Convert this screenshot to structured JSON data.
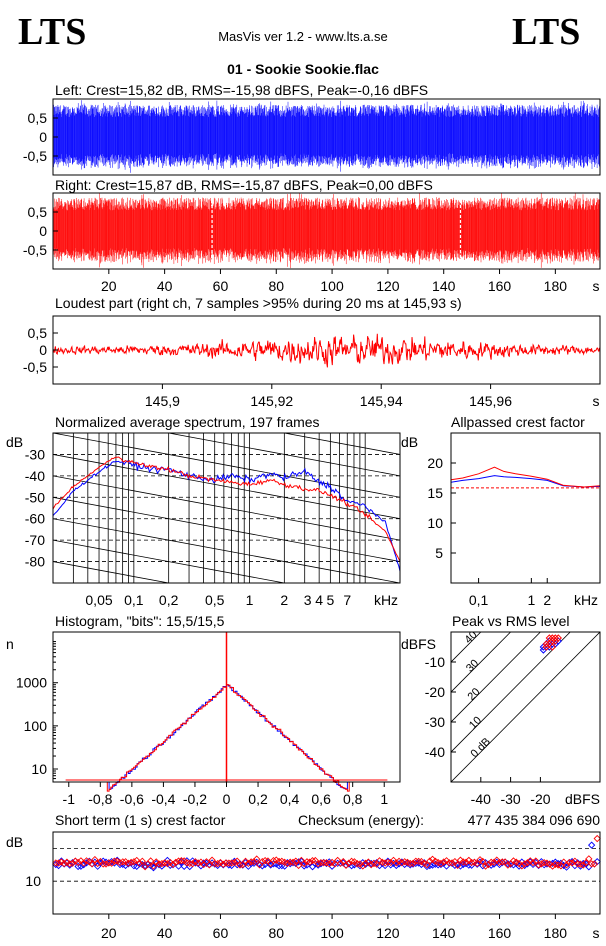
{
  "header": {
    "logo_left": "LTS",
    "logo_right": "LTS",
    "app_title": "MasVis ver 1.2 - www.lts.a.se",
    "file_title": "01 - Sookie Sookie.flac"
  },
  "colors": {
    "left": "#0000ff",
    "right": "#ff0000",
    "axis": "#000000"
  },
  "chart_data": [
    {
      "type": "line",
      "id": "left-waveform",
      "title": "Left: Crest=15,82 dB, RMS=-15,98 dBFS, Peak=-0,16 dBFS",
      "ylim": [
        -1,
        1
      ],
      "yticks": [
        "0,5",
        "0",
        "-0,5"
      ],
      "xlim": [
        0,
        196
      ],
      "series": [
        {
          "color": "#0000ff",
          "amplitude_envelope": 0.85
        }
      ]
    },
    {
      "type": "line",
      "id": "right-waveform",
      "title": "Right: Crest=15,87 dB, RMS=-15,87 dBFS, Peak=0,00 dBFS",
      "ylim": [
        -1,
        1
      ],
      "yticks": [
        "0,5",
        "0",
        "-0,5"
      ],
      "xlim": [
        0,
        196
      ],
      "xticks": [
        20,
        40,
        60,
        80,
        100,
        120,
        140,
        160,
        180
      ],
      "xticklabels": [
        "20",
        "40",
        "60",
        "80",
        "100",
        "120",
        "140",
        "160",
        "180",
        "s"
      ],
      "markers_s": [
        57,
        146
      ],
      "series": [
        {
          "color": "#ff0000",
          "amplitude_envelope": 0.88
        }
      ]
    },
    {
      "type": "line",
      "id": "loudest-part",
      "title": "Loudest part (right ch, 7 samples >95% during 20 ms at 145,93 s)",
      "ylim": [
        -1,
        1
      ],
      "yticks": [
        "0,5",
        "0",
        "-0,5"
      ],
      "xlim": [
        145.88,
        145.98
      ],
      "xticks": [
        145.9,
        145.92,
        145.94,
        145.96
      ],
      "xticklabels": [
        "145,9",
        "145,92",
        "145,94",
        "145,96",
        "s"
      ],
      "series": [
        {
          "color": "#ff0000"
        }
      ]
    },
    {
      "type": "line",
      "id": "spectrum",
      "title": "Normalized average spectrum, 197 frames",
      "ylabel": "dB",
      "ylim": [
        -90,
        -20
      ],
      "yticks": [
        -30,
        -40,
        -50,
        -60,
        -70,
        -80
      ],
      "yticklabels": [
        "-30",
        "-40",
        "-50",
        "-60",
        "-70",
        "-80"
      ],
      "xlim_khz": [
        0.02,
        20
      ],
      "xticklabels": [
        "0,05",
        "0,1",
        "0,2",
        "0,5",
        "1",
        "2",
        "3",
        "4",
        "5",
        "7",
        "kHz"
      ],
      "series": [
        {
          "color": "#0000ff",
          "x_khz": [
            0.02,
            0.03,
            0.05,
            0.07,
            0.1,
            0.15,
            0.2,
            0.3,
            0.5,
            0.7,
            1,
            1.5,
            2,
            3,
            4,
            5,
            7,
            10,
            15,
            20
          ],
          "y": [
            -59,
            -47,
            -38,
            -33,
            -35,
            -37,
            -37,
            -40,
            -42,
            -40,
            -42,
            -39,
            -41,
            -38,
            -43,
            -45,
            -52,
            -54,
            -62,
            -84
          ]
        },
        {
          "color": "#ff0000",
          "x_khz": [
            0.02,
            0.03,
            0.05,
            0.07,
            0.1,
            0.15,
            0.2,
            0.3,
            0.5,
            0.7,
            1,
            1.5,
            2,
            3,
            4,
            5,
            7,
            10,
            15,
            20
          ],
          "y": [
            -55,
            -45,
            -36,
            -31,
            -34,
            -36,
            -37,
            -40,
            -42,
            -43,
            -44,
            -42,
            -44,
            -46,
            -47,
            -49,
            -53,
            -58,
            -66,
            -80
          ]
        }
      ]
    },
    {
      "type": "line",
      "id": "allpassed-crest",
      "title": "Allpassed crest factor",
      "ylabel": "dB",
      "ylim": [
        0,
        25
      ],
      "yticks": [
        5,
        10,
        15,
        20
      ],
      "yticklabels": [
        "5",
        "10",
        "15",
        "20"
      ],
      "xlim_khz": [
        0.03,
        20
      ],
      "xticklabels": [
        "0,1",
        "1",
        "2",
        "kHz"
      ],
      "reference_db": 15.85,
      "series": [
        {
          "color": "#0000ff",
          "x_khz": [
            0.03,
            0.05,
            0.1,
            0.2,
            0.3,
            0.5,
            1,
            2,
            4,
            10,
            20
          ],
          "y": [
            16.8,
            17.1,
            17.4,
            17.9,
            17.7,
            17.6,
            17.4,
            17.1,
            16.2,
            16.0,
            16.1
          ]
        },
        {
          "color": "#ff0000",
          "x_khz": [
            0.03,
            0.05,
            0.1,
            0.2,
            0.3,
            0.5,
            1,
            2,
            4,
            10,
            20
          ],
          "y": [
            17.2,
            17.5,
            18.2,
            19.3,
            18.6,
            18.2,
            17.8,
            17.3,
            16.3,
            16.0,
            16.2
          ]
        }
      ]
    },
    {
      "type": "line",
      "id": "histogram",
      "title": "Histogram, \"bits\": 15,5/15,5",
      "ylabel": "n",
      "yscale": "log",
      "ylim": [
        5,
        15000
      ],
      "yticks": [
        10,
        100,
        1000
      ],
      "yticklabels": [
        "10",
        "100",
        "1000"
      ],
      "xlim": [
        -1.1,
        1.1
      ],
      "xticks": [
        -1,
        -0.8,
        -0.6,
        -0.4,
        -0.2,
        0,
        0.2,
        0.4,
        0.6,
        0.8,
        1
      ],
      "xticklabels": [
        "-1",
        "-0,8",
        "-0,6",
        "-0,4",
        "-0,2",
        "0",
        "0,2",
        "0,4",
        "0,6",
        "0,8",
        "1"
      ],
      "peak_count": 900,
      "series": [
        {
          "color": "#0000ff"
        },
        {
          "color": "#ff0000"
        }
      ]
    },
    {
      "type": "scatter",
      "id": "peak-vs-rms",
      "title": "Peak vs RMS level",
      "ylabel": "dBFS",
      "xlabel": "dBFS",
      "xlim": [
        -50,
        0
      ],
      "ylim": [
        -50,
        0
      ],
      "yticks": [
        -10,
        -20,
        -30,
        -40
      ],
      "yticklabels": [
        "-10",
        "-20",
        "-30",
        "-40"
      ],
      "xticks": [
        -40,
        -30,
        -20
      ],
      "xticklabels": [
        "-40",
        "-30",
        "-20"
      ],
      "crest_lines": [
        "40",
        "30",
        "20",
        "10",
        "0 dB"
      ],
      "series": [
        {
          "color": "#0000ff",
          "points": [
            [
              -18,
              -5
            ],
            [
              -17,
              -4
            ],
            [
              -16,
              -3
            ],
            [
              -15,
              -3
            ],
            [
              -19,
              -6
            ],
            [
              -17,
              -5
            ],
            [
              -16,
              -4
            ],
            [
              -18,
              -4
            ],
            [
              -15,
              -4
            ],
            [
              -14,
              -3
            ],
            [
              -17,
              -3
            ],
            [
              -19,
              -5
            ]
          ]
        },
        {
          "color": "#ff0000",
          "points": [
            [
              -18,
              -4
            ],
            [
              -16,
              -3
            ],
            [
              -15,
              -2
            ],
            [
              -17,
              -4
            ],
            [
              -16,
              -5
            ],
            [
              -14,
              -2
            ],
            [
              -17,
              -2
            ],
            [
              -18,
              -5
            ],
            [
              -15,
              -3
            ],
            [
              -16,
              -2
            ]
          ]
        }
      ]
    },
    {
      "type": "scatter",
      "id": "short-term-crest",
      "title": "Short term (1 s) crest factor",
      "ylabel": "dB",
      "ylim": [
        0,
        25
      ],
      "yticks": [
        10
      ],
      "yticklabels": [
        "10"
      ],
      "dashed_lines_db": [
        10,
        20
      ],
      "xlim": [
        0,
        196
      ],
      "xticks": [
        20,
        40,
        60,
        80,
        100,
        120,
        140,
        160,
        180
      ],
      "xticklabels": [
        "20",
        "40",
        "60",
        "80",
        "100",
        "120",
        "140",
        "160",
        "180",
        "s"
      ],
      "mean_db": 15.5,
      "series": [
        {
          "color": "#0000ff"
        },
        {
          "color": "#ff0000"
        }
      ]
    }
  ],
  "checksum": {
    "label": "Checksum (energy):",
    "value": "477 435 384 096 690"
  }
}
